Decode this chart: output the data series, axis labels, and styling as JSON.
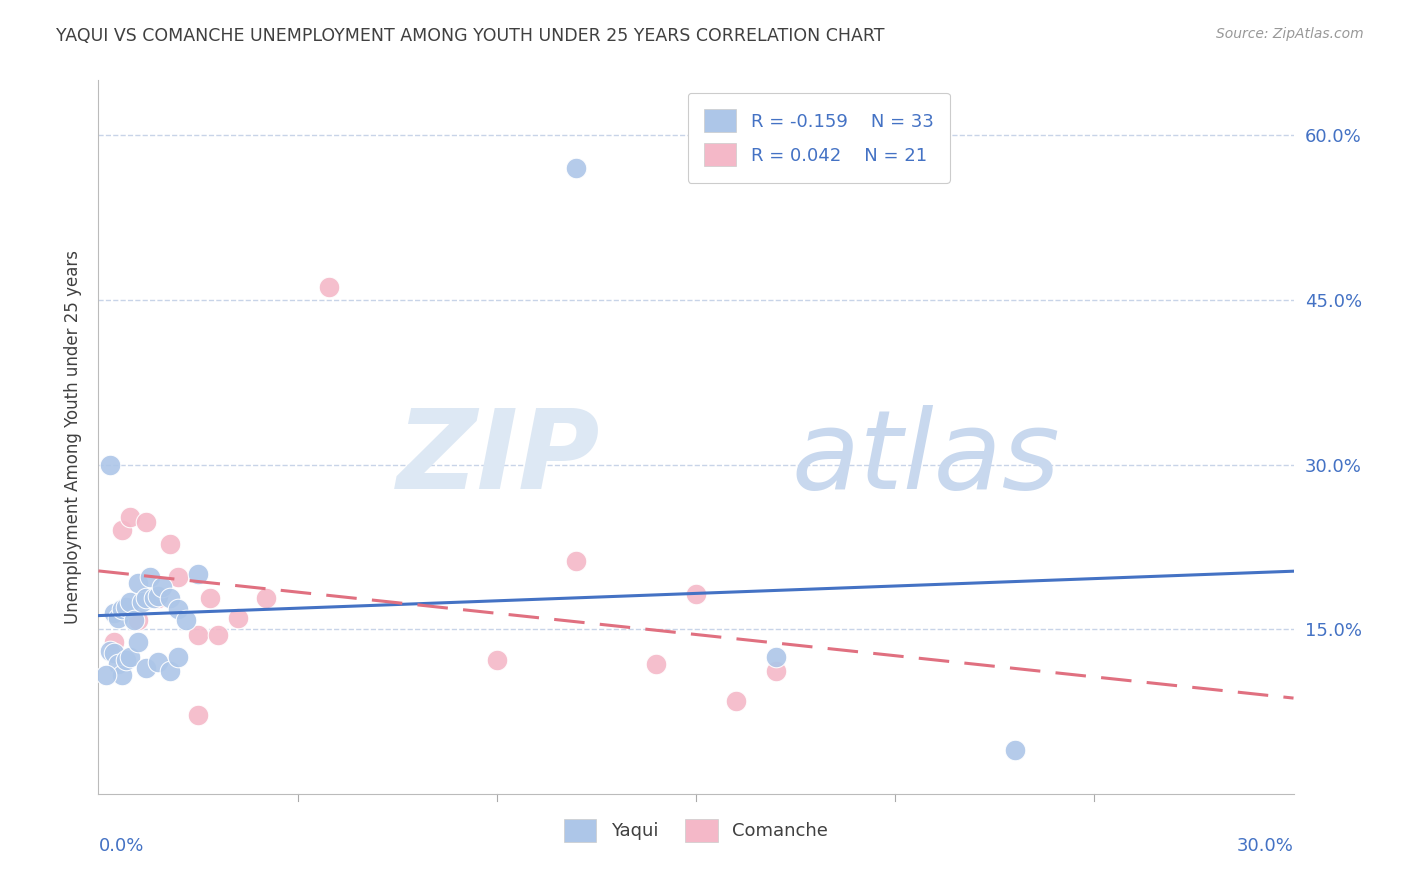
{
  "title": "YAQUI VS COMANCHE UNEMPLOYMENT AMONG YOUTH UNDER 25 YEARS CORRELATION CHART",
  "source": "Source: ZipAtlas.com",
  "ylabel": "Unemployment Among Youth under 25 years",
  "ytick_values": [
    0.6,
    0.45,
    0.3,
    0.15
  ],
  "xmin": 0.0,
  "xmax": 0.3,
  "ymin": 0.0,
  "ymax": 0.65,
  "legend_R1": "R = -0.159",
  "legend_N1": "N = 33",
  "legend_R2": "R = 0.042",
  "legend_N2": "N = 21",
  "series1_name": "Yaqui",
  "series2_name": "Comanche",
  "color1": "#adc6e8",
  "color2": "#f4b8c8",
  "trend1_color": "#4472c4",
  "trend2_color": "#e07080",
  "background_color": "#ffffff",
  "title_color": "#404040",
  "axis_label_color": "#4472c4",
  "grid_color": "#c8d4e8",
  "yaqui_x": [
    0.004,
    0.005,
    0.006,
    0.007,
    0.008,
    0.009,
    0.01,
    0.011,
    0.012,
    0.013,
    0.014,
    0.015,
    0.016,
    0.018,
    0.02,
    0.022,
    0.003,
    0.004,
    0.005,
    0.006,
    0.007,
    0.008,
    0.01,
    0.012,
    0.015,
    0.018,
    0.02,
    0.025,
    0.12,
    0.17,
    0.23,
    0.002,
    0.003
  ],
  "yaqui_y": [
    0.165,
    0.16,
    0.168,
    0.17,
    0.175,
    0.158,
    0.192,
    0.175,
    0.178,
    0.198,
    0.178,
    0.18,
    0.188,
    0.178,
    0.168,
    0.158,
    0.13,
    0.128,
    0.118,
    0.108,
    0.122,
    0.125,
    0.138,
    0.115,
    0.12,
    0.112,
    0.125,
    0.2,
    0.57,
    0.125,
    0.04,
    0.108,
    0.3
  ],
  "comanche_x": [
    0.004,
    0.006,
    0.008,
    0.01,
    0.012,
    0.015,
    0.018,
    0.02,
    0.025,
    0.028,
    0.035,
    0.042,
    0.058,
    0.1,
    0.12,
    0.14,
    0.15,
    0.16,
    0.17,
    0.025,
    0.03
  ],
  "comanche_y": [
    0.138,
    0.24,
    0.252,
    0.158,
    0.248,
    0.178,
    0.228,
    0.198,
    0.145,
    0.178,
    0.16,
    0.178,
    0.462,
    0.122,
    0.212,
    0.118,
    0.182,
    0.085,
    0.112,
    0.072,
    0.145
  ]
}
